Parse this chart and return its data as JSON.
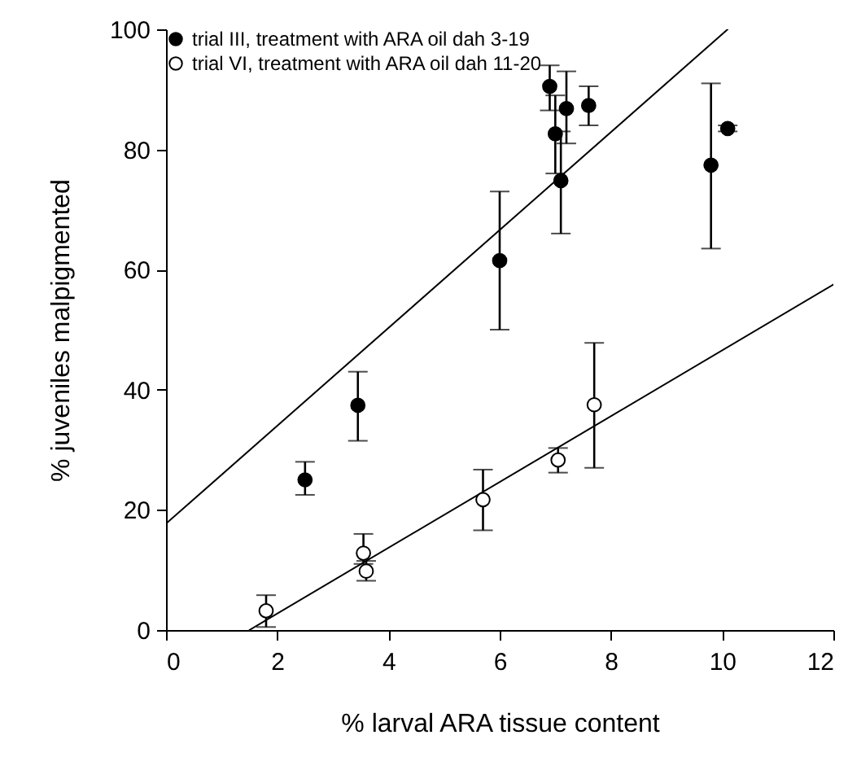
{
  "chart_data": {
    "type": "scatter",
    "xlabel": "% larval ARA tissue content",
    "ylabel": "% juveniles malpigmented",
    "xlim": [
      0,
      12
    ],
    "xticks": [
      0,
      2,
      4,
      6,
      8,
      10,
      12
    ],
    "ylim": [
      0,
      100
    ],
    "yticks": [
      0,
      20,
      40,
      60,
      80,
      100
    ],
    "grid": false,
    "legend": "top left",
    "series": [
      {
        "name": "trial III, treatment with ARA oil dah 3-19",
        "color": "#000000",
        "marker": "circle",
        "x": [
          2.5,
          3.45,
          6.0,
          6.9,
          7.0,
          7.1,
          7.2,
          7.6,
          9.8,
          10.1
        ],
        "values": [
          25,
          37.4,
          61.5,
          90.5,
          82.6,
          74.8,
          86.8,
          87.3,
          77.4,
          83.5
        ],
        "errors": [
          [
            22.5,
            28
          ],
          [
            31.5,
            43
          ],
          [
            50,
            73
          ],
          [
            86.5,
            94
          ],
          [
            76,
            89
          ],
          [
            66,
            83
          ],
          [
            81,
            93
          ],
          [
            84,
            90.5
          ],
          [
            63.5,
            91
          ],
          [
            83,
            84
          ]
        ]
      },
      {
        "name": "trial VI, treatment with ARA oil dah 11-20",
        "color": "#ffffff",
        "marker": "circle",
        "x": [
          1.8,
          3.55,
          3.6,
          5.7,
          7.05,
          7.7
        ],
        "values": [
          3.2,
          12.8,
          9.8,
          21.7,
          28.3,
          37.5
        ],
        "errors": [
          [
            0.5,
            5.8
          ],
          [
            11,
            16
          ],
          [
            8.2,
            11.5
          ],
          [
            16.6,
            26.7
          ],
          [
            26.2,
            30.3
          ],
          [
            27,
            47.8
          ]
        ]
      },
      {
        "type": "line",
        "color": "#000000",
        "marker": "none",
        "x": [
          0,
          10.1
        ],
        "values": [
          17.7,
          100
        ]
      },
      {
        "type": "line",
        "color": "#000000",
        "marker": "none",
        "x": [
          1.5,
          12
        ],
        "values": [
          0,
          57.5
        ]
      }
    ]
  }
}
